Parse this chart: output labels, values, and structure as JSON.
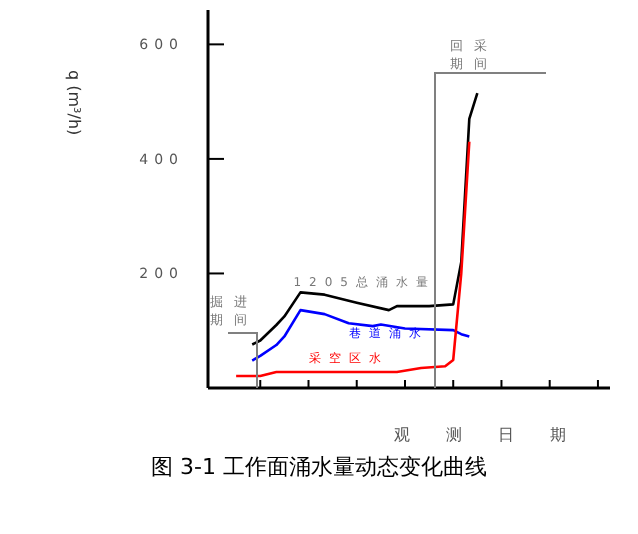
{
  "chart_data": {
    "type": "line",
    "title": "图 3-1  工作面涌水量动态变化曲线",
    "ylabel": "q (m³/h)",
    "xlabel": "观测日期",
    "categories": [
      null,
      null,
      null,
      null,
      null,
      null,
      null,
      null,
      null,
      null,
      null,
      null,
      null,
      null,
      null,
      null,
      null,
      null,
      null,
      null,
      null,
      null,
      null,
      null,
      null,
      null,
      null,
      null,
      null,
      null,
      null,
      null,
      null,
      null,
      null,
      null,
      null,
      null,
      null,
      null,
      null,
      null,
      null,
      null,
      null,
      null,
      null,
      null,
      null,
      null
    ],
    "ylim": [
      0,
      660
    ],
    "yticks": [
      200,
      400,
      600
    ],
    "grid": false,
    "legend": false,
    "marker": "none",
    "line_style": "solid",
    "annotations": [
      "掘进期间",
      "回采期间"
    ],
    "series": [
      {
        "name": "1205总涌水量",
        "color": "#000000",
        "values": [
          null,
          null,
          null,
          null,
          null,
          76,
          83,
          null,
          110,
          125,
          null,
          167,
          null,
          null,
          163,
          null,
          null,
          null,
          149,
          null,
          null,
          null,
          136,
          143,
          null,
          null,
          null,
          143,
          null,
          null,
          146,
          220,
          470,
          515,
          null,
          null,
          null,
          null,
          null,
          null,
          null,
          null,
          null,
          null,
          null,
          null,
          null,
          null,
          null,
          null
        ]
      },
      {
        "name": "巷道涌水",
        "color": "#0000ff",
        "values": [
          null,
          null,
          null,
          null,
          null,
          48,
          56,
          null,
          75,
          90,
          null,
          136,
          null,
          null,
          129,
          null,
          null,
          113,
          null,
          null,
          108,
          111,
          null,
          null,
          104,
          null,
          null,
          null,
          null,
          null,
          101,
          94,
          90,
          null,
          null,
          null,
          null,
          null,
          null,
          null,
          null,
          null,
          null,
          null,
          null,
          null,
          null,
          null,
          null,
          null
        ]
      },
      {
        "name": "采空区水",
        "color": "#ff0000",
        "values": [
          null,
          null,
          null,
          21,
          null,
          null,
          21,
          null,
          28,
          null,
          null,
          null,
          null,
          null,
          null,
          null,
          null,
          null,
          null,
          null,
          null,
          null,
          null,
          28,
          null,
          null,
          35,
          null,
          null,
          38,
          49,
          200,
          430,
          null,
          null,
          null,
          null,
          null,
          null,
          null,
          null,
          null,
          null,
          null,
          null,
          null,
          null,
          null,
          null,
          null
        ]
      }
    ]
  }
}
